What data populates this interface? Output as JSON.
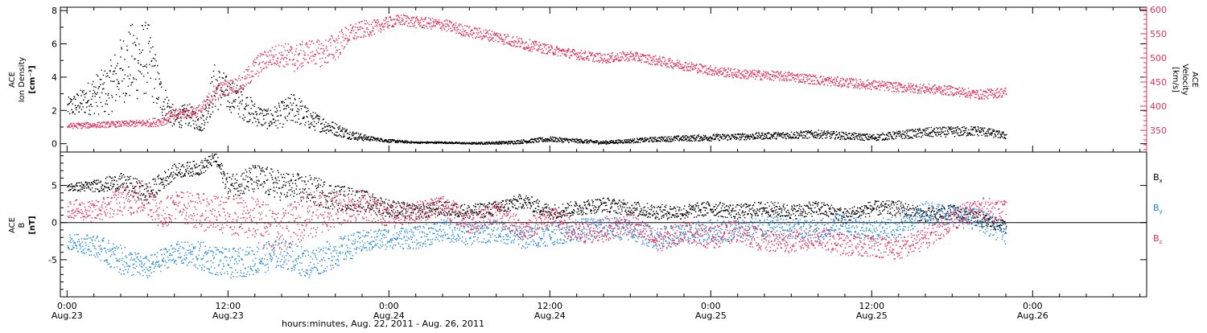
{
  "chart_data": [
    {
      "type": "scatter",
      "panel": "top",
      "left_axis": {
        "label_line1": "ACE",
        "label_line2": "Ion Density",
        "units": "[cm⁻³]",
        "ylim": [
          -0.5,
          8.2
        ],
        "ticks": [
          "0",
          "2",
          "4",
          "6",
          "8"
        ],
        "tick_values": [
          0,
          2,
          4,
          6,
          8
        ]
      },
      "right_axis": {
        "label_line1": "ACE",
        "label_line2": "Velocity",
        "units": "[km/s]",
        "ylim": [
          305,
          605
        ],
        "ticks": [
          "350",
          "400",
          "450",
          "500",
          "550",
          "600"
        ],
        "tick_values": [
          350,
          400,
          450,
          500,
          550,
          600
        ],
        "color": "#e0305c"
      },
      "series": [
        {
          "color": "#000000",
          "axis": "left",
          "x": [
            0,
            1,
            2,
            3,
            4,
            5,
            6,
            7,
            8,
            9,
            10,
            11,
            12,
            13,
            14,
            15,
            16,
            17,
            18,
            19,
            20,
            21,
            22,
            23,
            24,
            26,
            28,
            30,
            33,
            36,
            40,
            44,
            48,
            52,
            56,
            60,
            64,
            68,
            70
          ],
          "values": [
            2.2,
            2.5,
            3.0,
            3.2,
            4.5,
            5.0,
            5.2,
            2.8,
            1.5,
            1.8,
            1.2,
            3.5,
            3.0,
            2.5,
            1.8,
            1.5,
            1.8,
            2.2,
            1.5,
            1.2,
            0.9,
            0.6,
            0.4,
            0.3,
            0.2,
            0.1,
            0.1,
            0.05,
            0.1,
            0.3,
            0.1,
            0.3,
            0.4,
            0.5,
            0.6,
            0.4,
            0.7,
            0.8,
            0.5
          ],
          "spread": [
            0.6,
            0.8,
            1.2,
            1.5,
            2.0,
            2.5,
            2.2,
            1.2,
            0.6,
            0.7,
            0.5,
            1.5,
            1.0,
            1.0,
            0.7,
            0.6,
            0.8,
            1.0,
            0.6,
            0.5,
            0.4,
            0.3,
            0.2,
            0.1,
            0.1,
            0.05,
            0.05,
            0.05,
            0.1,
            0.15,
            0.1,
            0.15,
            0.2,
            0.2,
            0.25,
            0.2,
            0.3,
            0.3,
            0.2
          ]
        },
        {
          "color": "#e0305c",
          "axis": "right",
          "x": [
            0,
            2,
            4,
            6,
            7,
            8,
            9,
            10,
            11,
            12,
            13,
            14,
            15,
            16,
            17,
            18,
            19,
            20,
            21,
            22,
            23,
            24,
            25,
            26,
            28,
            30,
            32,
            34,
            36,
            38,
            40,
            42,
            44,
            46,
            48,
            50,
            52,
            54,
            56,
            58,
            60,
            62,
            64,
            66,
            68,
            70
          ],
          "values": [
            360,
            362,
            364,
            366,
            370,
            382,
            388,
            392,
            430,
            440,
            448,
            480,
            502,
            508,
            500,
            515,
            510,
            525,
            550,
            560,
            565,
            575,
            580,
            575,
            570,
            555,
            545,
            530,
            518,
            508,
            500,
            505,
            495,
            485,
            475,
            468,
            465,
            462,
            455,
            450,
            445,
            440,
            437,
            433,
            425,
            430
          ],
          "spread": [
            6,
            6,
            6,
            8,
            10,
            12,
            10,
            14,
            20,
            15,
            18,
            25,
            20,
            25,
            30,
            25,
            28,
            30,
            20,
            18,
            15,
            12,
            12,
            12,
            12,
            12,
            12,
            12,
            10,
            10,
            10,
            10,
            10,
            10,
            10,
            10,
            10,
            10,
            10,
            10,
            10,
            10,
            10,
            10,
            10,
            10
          ]
        }
      ]
    },
    {
      "type": "scatter",
      "panel": "bottom",
      "left_axis": {
        "label_line1": "ACE",
        "label_line2": "B",
        "units": "[nT]",
        "ylim": [
          -10,
          9.5
        ],
        "ticks": [
          "-5",
          "0",
          "5"
        ],
        "tick_values": [
          -5,
          0,
          5
        ]
      },
      "zero_line": true,
      "legend": {
        "placement": "right",
        "items": [
          {
            "text": "B",
            "sub": "x",
            "color": "#000000"
          },
          {
            "text": "B",
            "sub": "y",
            "color": "#1f86d8"
          },
          {
            "text": "B",
            "sub": "z",
            "color": "#e0305c"
          }
        ]
      },
      "series": [
        {
          "name": "Bx",
          "color": "#000000",
          "x": [
            0,
            2,
            4,
            6,
            8,
            10,
            11,
            12,
            14,
            16,
            18,
            20,
            22,
            24,
            26,
            28,
            30,
            32,
            34,
            36,
            38,
            40,
            42,
            44,
            46,
            48,
            50,
            52,
            54,
            56,
            58,
            60,
            62,
            64,
            66,
            68,
            70
          ],
          "values": [
            4.8,
            5.0,
            5.5,
            4.0,
            7.0,
            7.5,
            8.8,
            5.0,
            6.0,
            5.0,
            4.5,
            3.5,
            3.0,
            2.0,
            1.5,
            2.0,
            1.5,
            2.0,
            3.0,
            1.5,
            2.0,
            2.5,
            2.0,
            1.5,
            1.5,
            2.0,
            1.5,
            2.0,
            1.5,
            2.0,
            1.0,
            2.0,
            2.0,
            1.0,
            1.5,
            0.5,
            -0.5
          ],
          "spread": [
            0.5,
            0.8,
            1.2,
            1.5,
            1.0,
            1.0,
            0.8,
            1.5,
            2.0,
            2.0,
            2.0,
            1.8,
            1.5,
            1.2,
            1.0,
            1.0,
            1.0,
            1.0,
            1.0,
            1.0,
            1.0,
            1.0,
            1.0,
            1.0,
            1.0,
            1.0,
            1.0,
            1.0,
            1.0,
            1.0,
            1.0,
            1.0,
            1.0,
            1.0,
            1.0,
            1.0,
            0.8
          ]
        },
        {
          "name": "By",
          "color": "#1f86d8",
          "x": [
            0,
            2,
            4,
            6,
            8,
            10,
            12,
            14,
            16,
            18,
            20,
            22,
            24,
            26,
            28,
            30,
            32,
            34,
            36,
            38,
            40,
            42,
            44,
            46,
            48,
            50,
            52,
            54,
            56,
            58,
            60,
            62,
            64,
            66,
            68,
            70
          ],
          "values": [
            -2.5,
            -3.0,
            -5.0,
            -6.0,
            -4.0,
            -4.5,
            -5.5,
            -5.0,
            -4.0,
            -5.5,
            -4.0,
            -2.5,
            -2.0,
            -2.0,
            -1.0,
            -1.5,
            -1.0,
            -2.0,
            -1.5,
            -1.0,
            -0.5,
            -1.0,
            -2.0,
            -1.5,
            -1.0,
            -1.0,
            -0.5,
            -1.0,
            -1.0,
            0.0,
            -1.0,
            -0.5,
            1.5,
            1.0,
            0.5,
            -1.5
          ],
          "spread": [
            1.0,
            1.5,
            2.0,
            1.5,
            1.5,
            2.0,
            2.0,
            2.0,
            2.0,
            2.0,
            2.0,
            1.5,
            1.5,
            1.5,
            1.5,
            1.5,
            1.5,
            1.5,
            1.5,
            1.5,
            1.5,
            1.5,
            1.5,
            1.5,
            1.5,
            1.5,
            1.5,
            1.5,
            1.5,
            1.5,
            1.5,
            1.5,
            1.5,
            1.5,
            1.5,
            1.5
          ]
        },
        {
          "name": "Bz",
          "color": "#e0305c",
          "x": [
            0,
            2,
            4,
            6,
            7,
            8,
            10,
            12,
            14,
            16,
            18,
            20,
            22,
            24,
            26,
            28,
            30,
            32,
            34,
            36,
            38,
            40,
            42,
            44,
            46,
            48,
            50,
            52,
            54,
            56,
            58,
            60,
            62,
            64,
            66,
            68,
            70
          ],
          "values": [
            2.0,
            1.5,
            3.0,
            3.5,
            1.0,
            2.5,
            1.5,
            1.0,
            0.5,
            -1.0,
            1.0,
            2.0,
            2.5,
            1.0,
            1.5,
            2.5,
            0.0,
            1.5,
            -1.0,
            1.0,
            -1.5,
            -1.0,
            0.0,
            -2.5,
            -1.0,
            -2.0,
            -1.0,
            -2.5,
            -2.5,
            -2.0,
            -3.0,
            -3.0,
            -3.5,
            -2.0,
            0.5,
            2.0,
            1.5
          ],
          "spread": [
            1.2,
            1.5,
            2.0,
            2.5,
            2.0,
            2.0,
            2.5,
            2.5,
            3.0,
            3.0,
            3.5,
            2.5,
            2.0,
            1.5,
            1.5,
            1.5,
            1.5,
            1.5,
            1.5,
            1.5,
            1.5,
            1.5,
            1.5,
            1.5,
            1.5,
            1.5,
            1.5,
            1.5,
            1.5,
            1.5,
            1.5,
            1.5,
            1.5,
            1.5,
            1.5,
            1.5,
            1.5
          ]
        }
      ]
    }
  ],
  "x_axis": {
    "range_hours": [
      -0.5,
      80.5
    ],
    "ticks": [
      {
        "hours": 0,
        "line1": "0:00",
        "line2": "Aug.23"
      },
      {
        "hours": 12,
        "line1": "12:00",
        "line2": "Aug.23"
      },
      {
        "hours": 24,
        "line1": "0:00",
        "line2": "Aug.24"
      },
      {
        "hours": 36,
        "line1": "12:00",
        "line2": "Aug.24"
      },
      {
        "hours": 48,
        "line1": "0:00",
        "line2": "Aug.25"
      },
      {
        "hours": 60,
        "line1": "12:00",
        "line2": "Aug.25"
      },
      {
        "hours": 72,
        "line1": "0:00",
        "line2": "Aug.26"
      }
    ],
    "label": "hours:minutes, Aug. 22, 2011 - Aug. 26, 2011"
  }
}
